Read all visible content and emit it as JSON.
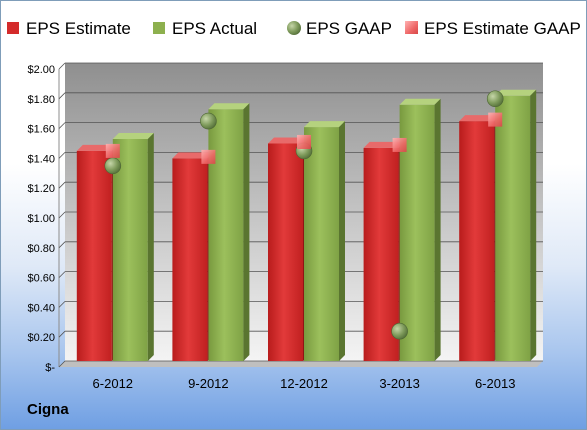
{
  "chart_data": {
    "type": "bar",
    "title": "",
    "xlabel": "",
    "ylabel": "",
    "categories": [
      "6-2012",
      "9-2012",
      "12-2012",
      "3-2013",
      "6-2013"
    ],
    "ylim": [
      0,
      2.0
    ],
    "yticks": [
      0,
      0.2,
      0.4,
      0.6,
      0.8,
      1.0,
      1.2,
      1.4,
      1.6,
      1.8,
      2.0
    ],
    "ytick_labels": [
      "$-",
      "$0.20",
      "$0.40",
      "$0.60",
      "$0.80",
      "$1.00",
      "$1.20",
      "$1.40",
      "$1.60",
      "$1.80",
      "$2.00"
    ],
    "grid": true,
    "legend_position": "top",
    "series": [
      {
        "name": "EPS Estimate",
        "kind": "bar",
        "color": "#d42b2b",
        "values": [
          1.41,
          1.36,
          1.46,
          1.43,
          1.61
        ]
      },
      {
        "name": "EPS Actual",
        "kind": "bar",
        "color": "#8db04e",
        "values": [
          1.49,
          1.69,
          1.57,
          1.72,
          1.78
        ]
      },
      {
        "name": "EPS GAAP",
        "kind": "marker-circle",
        "color": "#7a9a5a",
        "values": [
          1.31,
          1.61,
          1.41,
          0.2,
          1.76
        ]
      },
      {
        "name": "EPS Estimate GAAP",
        "kind": "marker-square",
        "color": "#ef6f6f",
        "values": [
          1.41,
          1.37,
          1.47,
          1.45,
          1.62
        ]
      }
    ]
  },
  "footer": {
    "company": "Cigna"
  }
}
